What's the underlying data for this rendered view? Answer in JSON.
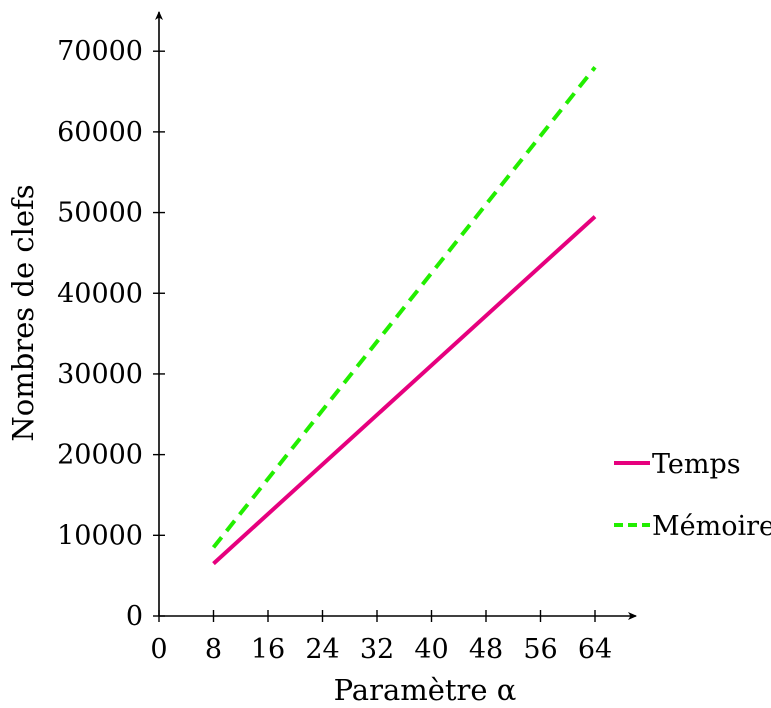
{
  "chart_data": {
    "type": "line",
    "xlabel": "Paramètre α",
    "ylabel": "Nombres de clefs",
    "x_ticks": [
      "0",
      "8",
      "16",
      "24",
      "32",
      "40",
      "48",
      "56",
      "64"
    ],
    "y_ticks": [
      "0",
      "10000",
      "20000",
      "30000",
      "40000",
      "50000",
      "60000",
      "70000"
    ],
    "xlim": [
      0,
      70
    ],
    "ylim": [
      0,
      72000
    ],
    "grid": false,
    "legend_position": "right",
    "series": [
      {
        "name": "Temps",
        "color": "#e6007e",
        "style": "solid",
        "x": [
          8,
          64
        ],
        "y": [
          6500,
          49500
        ]
      },
      {
        "name": "Mémoire",
        "color": "#22ee00",
        "style": "dashed",
        "x": [
          8,
          64
        ],
        "y": [
          8500,
          68000
        ]
      }
    ]
  }
}
